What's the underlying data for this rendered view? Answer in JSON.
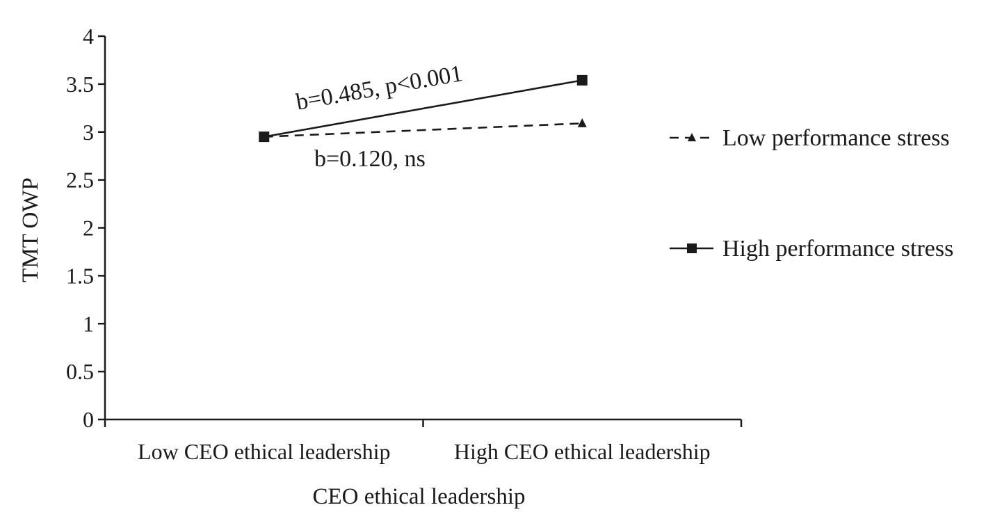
{
  "chart_data": {
    "type": "line",
    "title": "",
    "xlabel": "CEO ethical leadership",
    "ylabel": "TMT OWP",
    "categories": [
      "Low CEO ethical leadership",
      "High CEO ethical leadership"
    ],
    "ylim": [
      0,
      4
    ],
    "yticks": [
      "0",
      "0.5",
      "1",
      "1.5",
      "2",
      "2.5",
      "3",
      "3.5",
      "4"
    ],
    "grid": false,
    "legend_position": "right",
    "series": [
      {
        "name": "Low performance stress",
        "values": [
          2.95,
          3.09
        ],
        "line_style": "dashed",
        "marker": "triangle",
        "color": "#1a1a1a"
      },
      {
        "name": "High performance stress",
        "values": [
          2.95,
          3.54
        ],
        "line_style": "solid",
        "marker": "square",
        "color": "#1a1a1a"
      }
    ],
    "annotations": [
      {
        "text": "b=0.485,  p<0.001",
        "series": "High performance stress"
      },
      {
        "text": "b=0.120,  ns",
        "series": "Low performance stress"
      }
    ]
  }
}
